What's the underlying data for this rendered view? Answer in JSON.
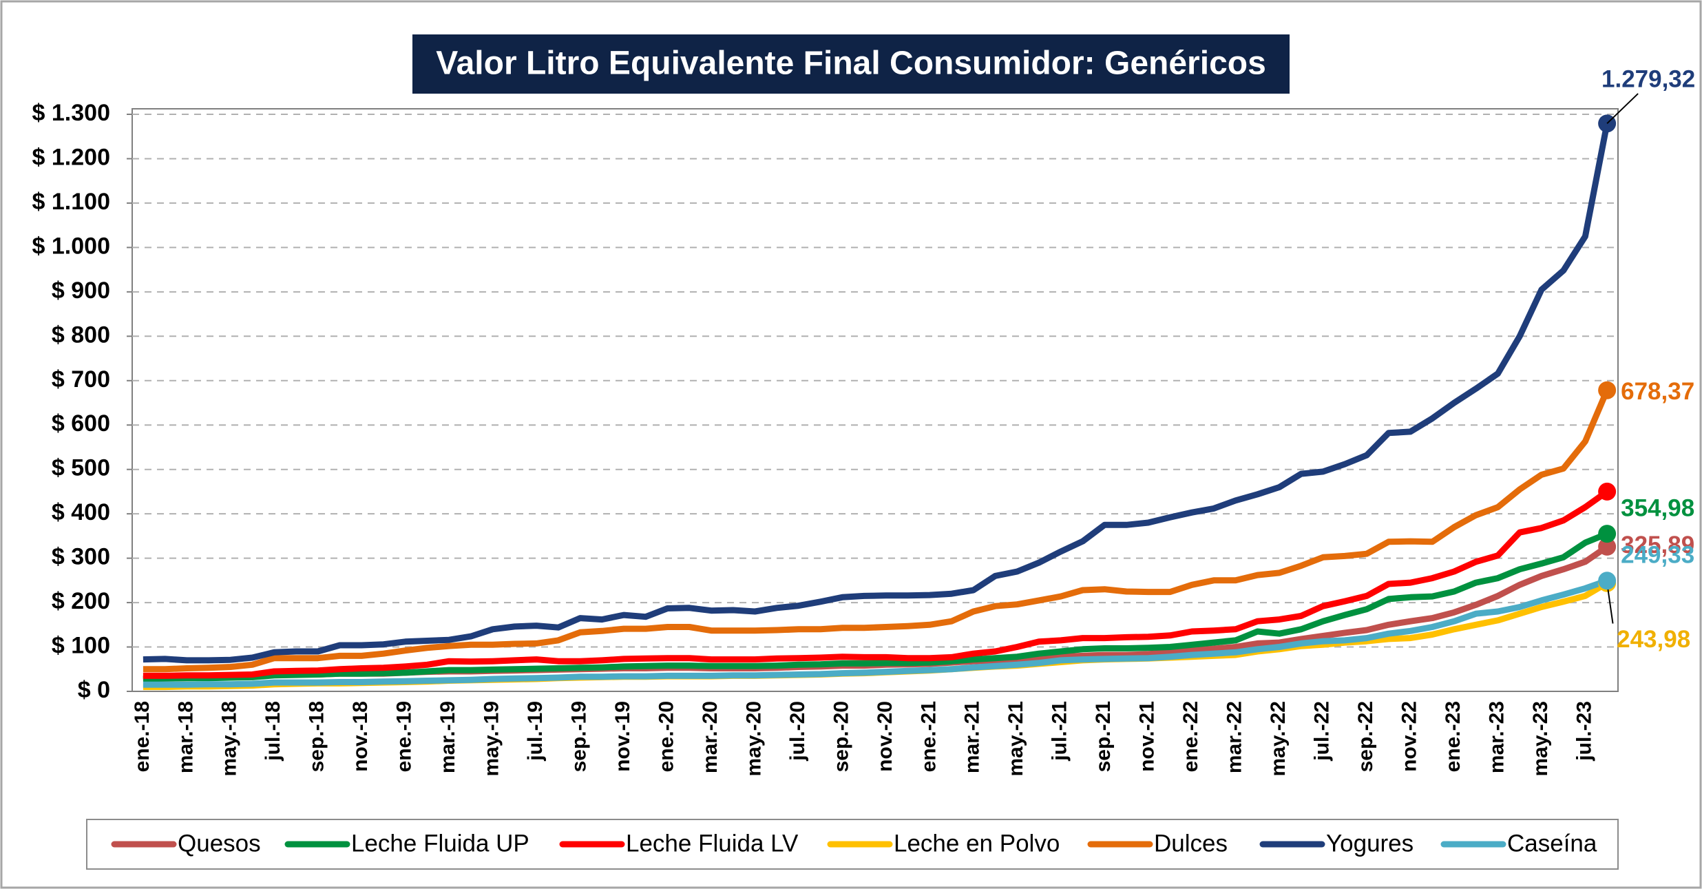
{
  "chart_data": {
    "type": "line",
    "title": "Valor Litro Equivalente Final Consumidor: Genéricos",
    "categories": [
      "ene.-18",
      null,
      "mar.-18",
      null,
      "may.-18",
      null,
      "jul.-18",
      null,
      "sep.-18",
      null,
      "nov.-18",
      null,
      "ene.-19",
      null,
      "mar.-19",
      null,
      "may.-19",
      null,
      "jul.-19",
      null,
      "sep.-19",
      null,
      "nov.-19",
      null,
      "ene.-20",
      null,
      "mar.-20",
      null,
      "may.-20",
      null,
      "jul.-20",
      null,
      "sep.-20",
      null,
      "nov.-20",
      null,
      "ene.-21",
      null,
      "mar.-21",
      null,
      "may.-21",
      null,
      "jul.-21",
      null,
      "sep.-21",
      null,
      "nov.-21",
      null,
      "ene.-22",
      null,
      "mar.-22",
      null,
      "may.-22",
      null,
      "jul.-22",
      null,
      "sep.-22",
      null,
      "nov.-22",
      null,
      "ene.-23",
      null,
      "mar.-23",
      null,
      "may.-23",
      null,
      "jul.-23",
      null
    ],
    "ylim": [
      0,
      1300
    ],
    "yticks": [
      {
        "value": 0,
        "label": "$ 0"
      },
      {
        "value": 100,
        "label": "$ 100"
      },
      {
        "value": 200,
        "label": "$ 200"
      },
      {
        "value": 300,
        "label": "$ 300"
      },
      {
        "value": 400,
        "label": "$ 400"
      },
      {
        "value": 500,
        "label": "$ 500"
      },
      {
        "value": 600,
        "label": "$ 600"
      },
      {
        "value": 700,
        "label": "$ 700"
      },
      {
        "value": 800,
        "label": "$ 800"
      },
      {
        "value": 900,
        "label": "$ 900"
      },
      {
        "value": 1000,
        "label": "$ 1.000"
      },
      {
        "value": 1100,
        "label": "$ 1.100"
      },
      {
        "value": 1200,
        "label": "$ 1.200"
      },
      {
        "value": 1300,
        "label": "$ 1.300"
      }
    ],
    "grid": true,
    "legend": "bottom",
    "series": [
      {
        "name": "Quesos",
        "color": "#c0504d",
        "values": [
          28,
          29,
          30,
          31,
          32,
          34,
          38,
          38,
          38,
          40,
          40,
          40,
          42,
          44,
          45,
          45,
          46,
          47,
          48,
          49,
          50,
          51,
          52,
          52,
          53,
          53,
          52,
          52,
          52,
          53,
          55,
          56,
          58,
          58,
          60,
          61,
          62,
          65,
          68,
          70,
          72,
          75,
          78,
          80,
          82,
          82,
          84,
          88,
          92,
          96,
          100,
          108,
          110,
          118,
          125,
          132,
          138,
          150,
          158,
          165,
          178,
          195,
          215,
          240,
          260,
          275,
          292,
          325.89
        ],
        "value_labels": [
          null,
          null,
          null,
          null,
          null,
          null,
          null,
          null,
          null,
          null,
          null,
          null,
          null,
          null,
          null,
          null,
          null,
          null,
          null,
          null,
          null,
          null,
          null,
          null,
          null,
          null,
          null,
          null,
          null,
          null,
          null,
          null,
          null,
          null,
          null,
          null,
          null,
          null,
          null,
          null,
          null,
          null,
          null,
          null,
          null,
          null,
          null,
          null,
          null,
          null,
          null,
          null,
          null,
          null,
          null,
          null,
          null,
          null,
          null,
          null,
          null,
          null,
          null,
          null,
          null,
          null,
          null,
          "325,89"
        ]
      },
      {
        "name": "Leche Fluida UP",
        "color": "#00913f",
        "values": [
          28,
          29,
          30,
          30,
          31,
          32,
          36,
          37,
          38,
          40,
          40,
          41,
          42,
          45,
          48,
          48,
          49,
          50,
          51,
          52,
          53,
          54,
          56,
          57,
          58,
          58,
          57,
          57,
          57,
          58,
          60,
          61,
          63,
          63,
          64,
          64,
          65,
          68,
          72,
          75,
          78,
          85,
          90,
          95,
          97,
          97,
          98,
          100,
          105,
          110,
          115,
          135,
          130,
          140,
          158,
          172,
          185,
          208,
          212,
          214,
          225,
          245,
          255,
          275,
          288,
          302,
          335,
          354.98
        ],
        "value_labels": [
          null,
          null,
          null,
          null,
          null,
          null,
          null,
          null,
          null,
          null,
          null,
          null,
          null,
          null,
          null,
          null,
          null,
          null,
          null,
          null,
          null,
          null,
          null,
          null,
          null,
          null,
          null,
          null,
          null,
          null,
          null,
          null,
          null,
          null,
          null,
          null,
          null,
          null,
          null,
          null,
          null,
          null,
          null,
          null,
          null,
          null,
          null,
          null,
          null,
          null,
          null,
          null,
          null,
          null,
          null,
          null,
          null,
          null,
          null,
          null,
          null,
          null,
          null,
          null,
          null,
          null,
          null,
          "354,98"
        ]
      },
      {
        "name": "Leche Fluida LV",
        "color": "#ff0000",
        "values": [
          35,
          35,
          36,
          36,
          37,
          38,
          45,
          46,
          47,
          50,
          52,
          53,
          56,
          60,
          68,
          67,
          68,
          70,
          72,
          68,
          68,
          70,
          73,
          74,
          75,
          75,
          72,
          72,
          72,
          74,
          75,
          76,
          78,
          77,
          77,
          75,
          75,
          77,
          85,
          90,
          100,
          112,
          115,
          120,
          120,
          122,
          123,
          126,
          135,
          137,
          140,
          158,
          162,
          170,
          192,
          203,
          215,
          242,
          245,
          255,
          270,
          292,
          306,
          358,
          368,
          385,
          415,
          450
        ]
      },
      {
        "name": "Leche en Polvo",
        "color": "#ffc000",
        "values": [
          10,
          10,
          11,
          11,
          12,
          13,
          16,
          17,
          18,
          18,
          19,
          20,
          21,
          22,
          24,
          25,
          26,
          27,
          28,
          30,
          31,
          32,
          33,
          33,
          34,
          34,
          34,
          35,
          35,
          36,
          37,
          38,
          40,
          41,
          43,
          45,
          47,
          50,
          53,
          56,
          58,
          62,
          66,
          70,
          72,
          73,
          74,
          76,
          78,
          80,
          82,
          90,
          95,
          102,
          105,
          110,
          113,
          118,
          120,
          128,
          140,
          150,
          160,
          175,
          190,
          202,
          215,
          243.98
        ],
        "value_labels": [
          null,
          null,
          null,
          null,
          null,
          null,
          null,
          null,
          null,
          null,
          null,
          null,
          null,
          null,
          null,
          null,
          null,
          null,
          null,
          null,
          null,
          null,
          null,
          null,
          null,
          null,
          null,
          null,
          null,
          null,
          null,
          null,
          null,
          null,
          null,
          null,
          null,
          null,
          null,
          null,
          null,
          null,
          null,
          null,
          null,
          null,
          null,
          null,
          null,
          null,
          null,
          null,
          null,
          null,
          null,
          null,
          null,
          null,
          null,
          null,
          null,
          null,
          null,
          null,
          null,
          null,
          null,
          "243,98"
        ]
      },
      {
        "name": "Dulces",
        "color": "#e46c0a",
        "values": [
          50,
          50,
          52,
          53,
          55,
          60,
          75,
          75,
          75,
          80,
          80,
          85,
          92,
          98,
          102,
          105,
          105,
          107,
          108,
          115,
          133,
          136,
          141,
          141,
          145,
          145,
          137,
          137,
          137,
          138,
          140,
          140,
          143,
          143,
          145,
          147,
          150,
          158,
          180,
          192,
          196,
          205,
          214,
          228,
          230,
          225,
          224,
          224,
          240,
          250,
          250,
          262,
          267,
          283,
          302,
          305,
          310,
          337,
          338,
          337,
          370,
          397,
          415,
          455,
          488,
          502,
          563,
          678.37
        ],
        "value_labels": [
          null,
          null,
          null,
          null,
          null,
          null,
          null,
          null,
          null,
          null,
          null,
          null,
          null,
          null,
          null,
          null,
          null,
          null,
          null,
          null,
          null,
          null,
          null,
          null,
          null,
          null,
          null,
          null,
          null,
          null,
          null,
          null,
          null,
          null,
          null,
          null,
          null,
          null,
          null,
          null,
          null,
          null,
          null,
          null,
          null,
          null,
          null,
          null,
          null,
          null,
          null,
          null,
          null,
          null,
          null,
          null,
          null,
          null,
          null,
          null,
          null,
          null,
          null,
          null,
          null,
          null,
          null,
          "678,37"
        ]
      },
      {
        "name": "Yogures",
        "color": "#1f3d7a",
        "values": [
          72,
          73,
          70,
          70,
          71,
          76,
          88,
          90,
          90,
          104,
          104,
          106,
          112,
          114,
          116,
          124,
          140,
          146,
          148,
          144,
          165,
          162,
          172,
          168,
          187,
          188,
          182,
          183,
          180,
          188,
          193,
          202,
          212,
          215,
          216,
          216,
          217,
          220,
          228,
          260,
          270,
          290,
          315,
          338,
          375,
          375,
          380,
          392,
          403,
          412,
          430,
          444,
          460,
          490,
          495,
          512,
          532,
          582,
          585,
          615,
          650,
          682,
          716,
          800,
          905,
          948,
          1025,
          1279.32
        ],
        "value_labels": [
          null,
          null,
          null,
          null,
          null,
          null,
          null,
          null,
          null,
          null,
          null,
          null,
          null,
          null,
          null,
          null,
          null,
          null,
          null,
          null,
          null,
          null,
          null,
          null,
          null,
          null,
          null,
          null,
          null,
          null,
          null,
          null,
          null,
          null,
          null,
          null,
          null,
          null,
          null,
          null,
          null,
          null,
          null,
          null,
          null,
          null,
          null,
          null,
          null,
          null,
          null,
          null,
          null,
          null,
          null,
          null,
          null,
          null,
          null,
          null,
          null,
          null,
          null,
          null,
          null,
          null,
          null,
          "1.279,32"
        ]
      },
      {
        "name": "Caseína",
        "color": "#4bacc6",
        "values": [
          15,
          15,
          15,
          16,
          16,
          17,
          20,
          20,
          20,
          21,
          21,
          22,
          23,
          24,
          25,
          26,
          28,
          29,
          30,
          31,
          33,
          33,
          34,
          34,
          35,
          35,
          35,
          36,
          36,
          37,
          38,
          39,
          41,
          42,
          44,
          46,
          48,
          50,
          54,
          57,
          60,
          64,
          70,
          72,
          73,
          74,
          75,
          78,
          82,
          85,
          88,
          95,
          100,
          108,
          113,
          115,
          120,
          130,
          136,
          145,
          158,
          175,
          180,
          190,
          205,
          218,
          232,
          249.33
        ],
        "value_labels": [
          null,
          null,
          null,
          null,
          null,
          null,
          null,
          null,
          null,
          null,
          null,
          null,
          null,
          null,
          null,
          null,
          null,
          null,
          null,
          null,
          null,
          null,
          null,
          null,
          null,
          null,
          null,
          null,
          null,
          null,
          null,
          null,
          null,
          null,
          null,
          null,
          null,
          null,
          null,
          null,
          null,
          null,
          null,
          null,
          null,
          null,
          null,
          null,
          null,
          null,
          null,
          null,
          null,
          null,
          null,
          null,
          null,
          null,
          null,
          null,
          null,
          null,
          null,
          null,
          null,
          null,
          null,
          "249,33"
        ]
      }
    ]
  }
}
